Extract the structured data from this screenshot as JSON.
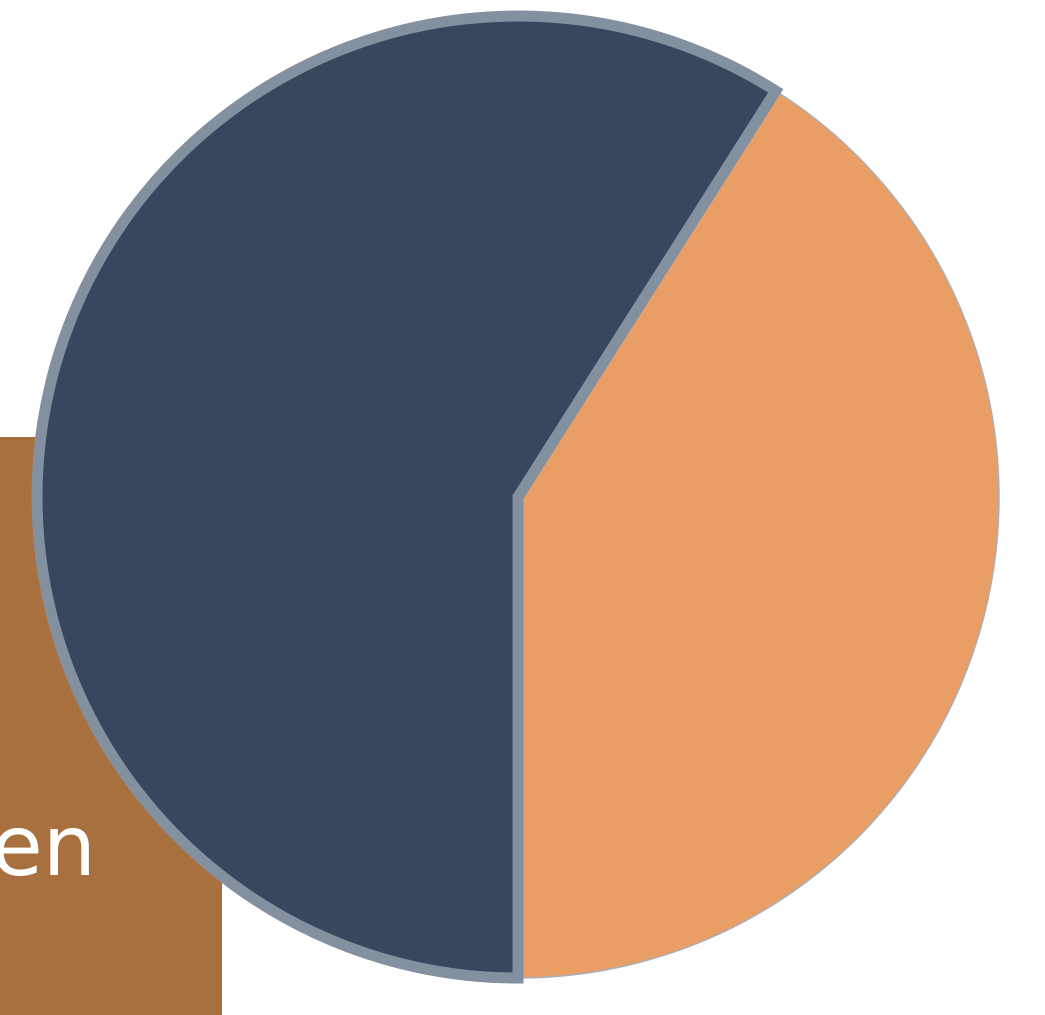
{
  "chart_data": {
    "type": "pie",
    "values": [
      59,
      41
    ],
    "colors": [
      "#36475e",
      "#e89e64"
    ],
    "annotation": "en"
  }
}
